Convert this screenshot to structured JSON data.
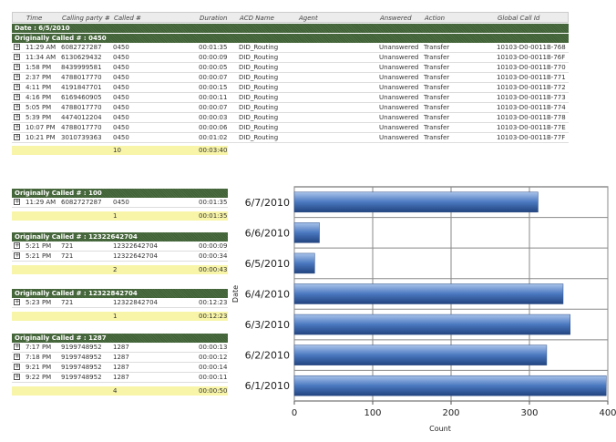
{
  "columns": [
    "Time",
    "Calling party #",
    "Called #",
    "Duration",
    "ACD Name",
    "Agent",
    "Answered",
    "Action",
    "Global Call Id"
  ],
  "date_label": "Date : 6/5/2010",
  "groups": [
    {
      "title": "Originally Called # : 0450",
      "rows": [
        [
          "11:29 AM",
          "6082727287",
          "0450",
          "00:01:35",
          "DID_Routing",
          "",
          "Unanswered",
          "Transfer",
          "10103-D0-0011B-768"
        ],
        [
          "11:34 AM",
          "6130629432",
          "0450",
          "00:00:09",
          "DID_Routing",
          "",
          "Unanswered",
          "Transfer",
          "10103-D0-0011B-76F"
        ],
        [
          "1:58 PM",
          "8439999581",
          "0450",
          "00:00:05",
          "DID_Routing",
          "",
          "Unanswered",
          "Transfer",
          "10103-D0-0011B-770"
        ],
        [
          "2:37 PM",
          "4788017770",
          "0450",
          "00:00:07",
          "DID_Routing",
          "",
          "Unanswered",
          "Transfer",
          "10103-D0-0011B-771"
        ],
        [
          "4:11 PM",
          "4191847701",
          "0450",
          "00:00:15",
          "DID_Routing",
          "",
          "Unanswered",
          "Transfer",
          "10103-D0-0011B-772"
        ],
        [
          "4:16 PM",
          "6169460905",
          "0450",
          "00:00:11",
          "DID_Routing",
          "",
          "Unanswered",
          "Transfer",
          "10103-D0-0011B-773"
        ],
        [
          "5:05 PM",
          "4788017770",
          "0450",
          "00:00:07",
          "DID_Routing",
          "",
          "Unanswered",
          "Transfer",
          "10103-D0-0011B-774"
        ],
        [
          "5:39 PM",
          "4474012204",
          "0450",
          "00:00:03",
          "DID_Routing",
          "",
          "Unanswered",
          "Transfer",
          "10103-D0-0011B-778"
        ],
        [
          "10:07 PM",
          "4788017770",
          "0450",
          "00:00:06",
          "DID_Routing",
          "",
          "Unanswered",
          "Transfer",
          "10103-D0-0011B-77E"
        ],
        [
          "10:21 PM",
          "3010739363",
          "0450",
          "00:01:02",
          "DID_Routing",
          "",
          "Unanswered",
          "Transfer",
          "10103-D0-0011B-77F"
        ]
      ],
      "count": "10",
      "total": "00:03:40"
    },
    {
      "title": "Originally Called # : 100",
      "rows": [
        [
          "11:29 AM",
          "6082727287",
          "0450",
          "00:01:35"
        ]
      ],
      "count": "1",
      "total": "00:01:35"
    },
    {
      "title": "Originally Called # : 12322642704",
      "rows": [
        [
          "5:21 PM",
          "721",
          "12322642704",
          "00:00:09"
        ],
        [
          "5:21 PM",
          "721",
          "12322642704",
          "00:00:34"
        ]
      ],
      "count": "2",
      "total": "00:00:43"
    },
    {
      "title": "Originally Called # : 12322842704",
      "rows": [
        [
          "5:23 PM",
          "721",
          "12322842704",
          "00:12:23"
        ]
      ],
      "count": "1",
      "total": "00:12:23"
    },
    {
      "title": "Originally Called # : 1287",
      "rows": [
        [
          "7:17 PM",
          "9199748952",
          "1287",
          "00:00:13"
        ],
        [
          "7:18 PM",
          "9199748952",
          "1287",
          "00:00:12"
        ],
        [
          "9:21 PM",
          "9199748952",
          "1287",
          "00:00:14"
        ],
        [
          "9:22 PM",
          "9199748952",
          "1287",
          "00:00:11"
        ]
      ],
      "count": "4",
      "total": "00:00:50"
    }
  ],
  "expand_icon": "+",
  "chart_data": {
    "type": "bar",
    "orientation": "horizontal",
    "categories": [
      "6/1/2010",
      "6/2/2010",
      "6/3/2010",
      "6/4/2010",
      "6/5/2010",
      "6/6/2010",
      "6/7/2010"
    ],
    "values": [
      398,
      322,
      352,
      343,
      26,
      32,
      311
    ],
    "xlabel": "Count",
    "ylabel": "Date",
    "xlim": [
      0,
      400
    ],
    "xticks": [
      0,
      100,
      200,
      300,
      400
    ],
    "grid": true,
    "bar_color": "#4a78c0"
  }
}
